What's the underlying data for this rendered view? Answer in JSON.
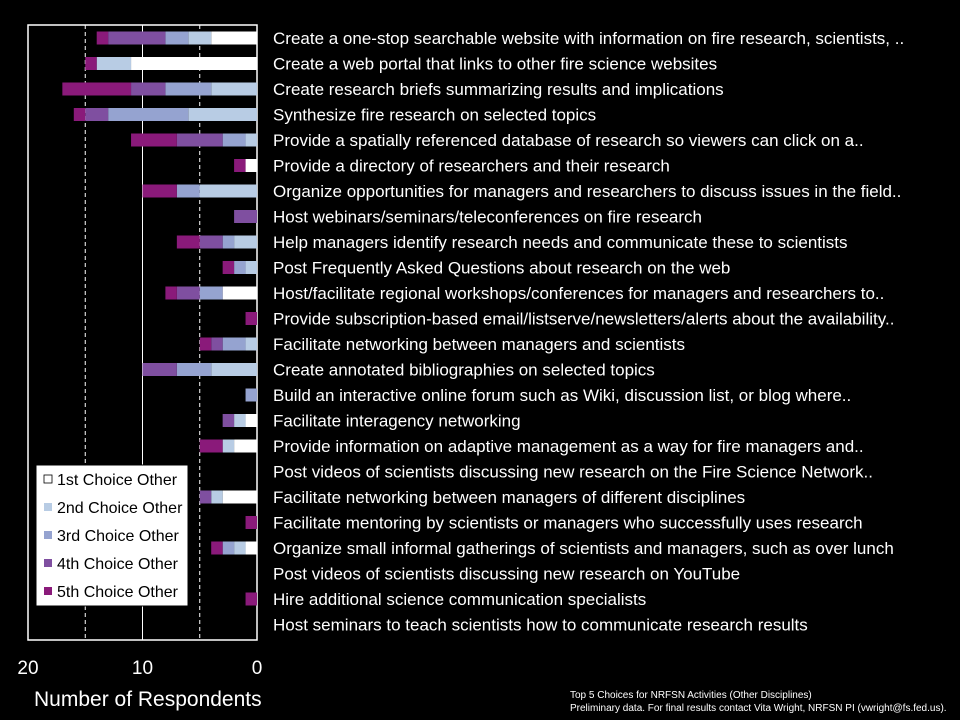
{
  "chart_data": {
    "type": "bar",
    "orientation": "horizontal-stacked",
    "x_reversed": true,
    "xlabel": "Number of Respondents",
    "xlim": [
      0,
      20
    ],
    "xticks": [
      "20",
      "10",
      "0"
    ],
    "grid": "dashed vertical at 5 and 15",
    "legend_position": "bottom-left",
    "categories": [
      "Create a one-stop searchable website with information on fire research, scientists, ..",
      "Create a web portal that links to other fire science websites",
      "Create research briefs summarizing results and implications",
      "Synthesize fire research on selected topics",
      "Provide a spatially referenced database of research so viewers can click on a..",
      "Provide a directory of researchers and their research",
      "Organize opportunities for managers and researchers to discuss issues in the field..",
      "Host webinars/seminars/teleconferences on fire research",
      "Help managers identify research needs and communicate these to scientists",
      "Post Frequently Asked Questions about research on the web",
      "Host/facilitate regional workshops/conferences for managers and researchers to..",
      "Provide subscription-based email/listserve/newsletters/alerts  about the availability..",
      "Facilitate networking between managers and scientists",
      "Create annotated bibliographies  on selected topics",
      "Build an interactive online forum such as Wiki, discussion list, or blog where..",
      "Facilitate interagency networking",
      "Provide information on adaptive management as a way for fire managers and..",
      "Post videos of scientists discussing new research on the Fire Science Network..",
      "Facilitate networking between managers of different disciplines",
      "Facilitate mentoring by scientists or managers who successfully uses research",
      "Organize small informal gatherings of scientists and managers, such as over lunch",
      "Post videos of scientists discussing new research on YouTube",
      "Hire additional  science communication specialists",
      "Host seminars to teach scientists how to communicate research results"
    ],
    "series": [
      {
        "name": "1st Choice Other",
        "color": "#ffffff",
        "values": [
          4,
          11,
          0,
          0,
          0,
          1,
          0,
          0,
          0,
          0,
          3,
          0,
          0,
          0,
          0,
          1,
          2,
          0,
          3,
          0,
          1,
          0,
          0,
          0
        ]
      },
      {
        "name": "2nd Choice Other",
        "color": "#b8cce4",
        "values": [
          2,
          3,
          4,
          6,
          1,
          0,
          5,
          0,
          2,
          1,
          0,
          0,
          1,
          4,
          0,
          1,
          1,
          0,
          1,
          0,
          1,
          0,
          0,
          0
        ]
      },
      {
        "name": "3rd Choice Other",
        "color": "#95a3d0",
        "values": [
          2,
          0,
          4,
          7,
          2,
          0,
          2,
          0,
          1,
          1,
          2,
          0,
          2,
          3,
          1,
          0,
          0,
          0,
          0,
          0,
          1,
          0,
          0,
          0
        ]
      },
      {
        "name": "4th Choice Other",
        "color": "#7f4fa0",
        "values": [
          5,
          0,
          3,
          2,
          4,
          0,
          0,
          2,
          2,
          0,
          2,
          0,
          1,
          3,
          0,
          1,
          0,
          0,
          1,
          0,
          0,
          0,
          0,
          0
        ]
      },
      {
        "name": "5th Choice Other",
        "color": "#8a1a7a",
        "values": [
          1,
          1,
          6,
          1,
          4,
          1,
          3,
          0,
          2,
          1,
          1,
          1,
          1,
          0,
          0,
          0,
          2,
          0,
          0,
          1,
          1,
          0,
          1,
          0
        ]
      }
    ]
  },
  "footnote": {
    "line1": "Top 5 Choices for NRFSN Activities (Other Disciplines)",
    "line2": "Preliminary data. For final results contact Vita Wright, NRFSN PI (vwright@fs.fed.us)."
  }
}
